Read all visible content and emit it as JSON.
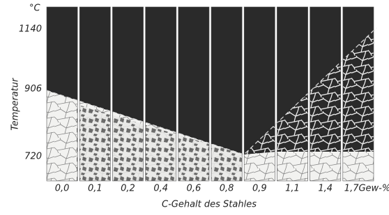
{
  "y_axis": {
    "title": "Temperatur",
    "unit": "°C",
    "ticks": [
      "1140",
      "906",
      "720"
    ]
  },
  "x_axis": {
    "title": "C-Gehalt des Stahles",
    "labels": [
      "0,0",
      "0,1",
      "0,2",
      "0,4",
      "0,6",
      "0,8",
      "0,9",
      "1,1",
      "1,4",
      "1,7Gew-%"
    ]
  }
}
